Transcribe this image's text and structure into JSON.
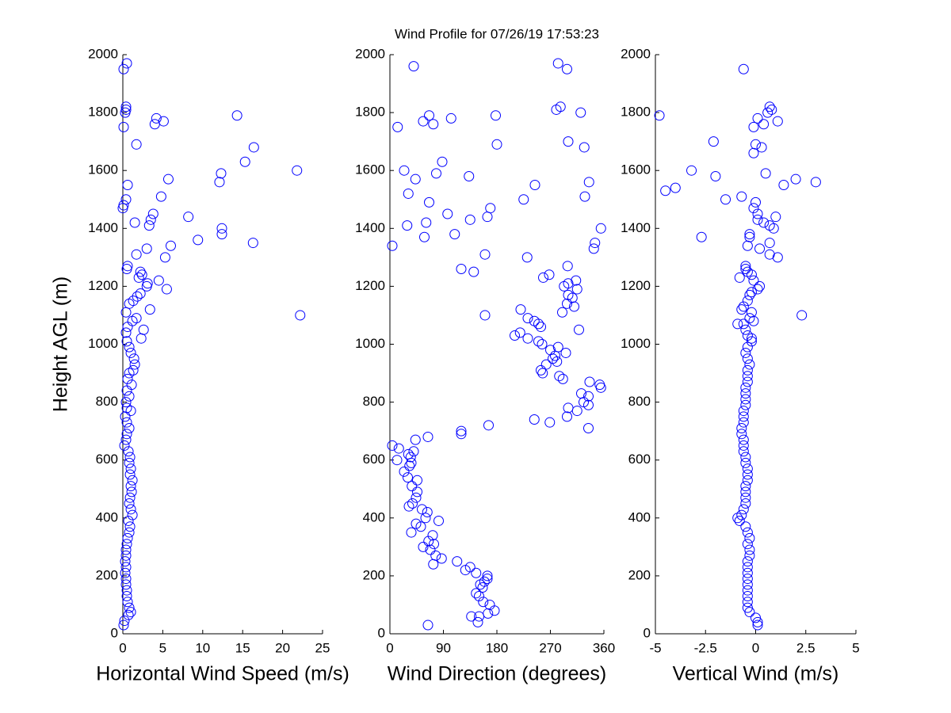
{
  "chart_data": [
    {
      "type": "scatter",
      "xlabel": "Horizontal Wind Speed (m/s)",
      "ylabel": "Height AGL (m)",
      "color": "#0000ff",
      "xlim": [
        0,
        25
      ],
      "xticks": [
        0,
        5,
        10,
        15,
        20,
        25
      ],
      "ylim": [
        0,
        2000
      ],
      "yticks": [
        0,
        200,
        400,
        600,
        800,
        1000,
        1200,
        1400,
        1600,
        1800,
        2000
      ],
      "x": [
        0.5,
        0.1,
        0.4,
        0.4,
        0.3,
        0.1,
        4.2,
        5.1,
        4,
        14.3,
        1.7,
        16.4,
        15.3,
        21.8,
        12.3,
        5.7,
        12.1,
        0.6,
        4.8,
        0.4,
        0.1,
        0,
        3.8,
        8.2,
        3.5,
        1.5,
        3.3,
        12.4,
        12.4,
        9.4,
        16.3,
        6,
        3,
        1.7,
        5.3,
        0.6,
        0.5,
        2.2,
        2.4,
        2,
        4.5,
        3.1,
        3,
        5.5,
        2.2,
        1.8,
        1.3,
        0.8,
        3.4,
        0.4,
        22.2,
        1.7,
        1.2,
        0.6,
        2.6,
        0.4,
        2.3,
        0.5,
        0.8,
        1,
        1.4,
        1.5,
        1.3,
        0.8,
        0.6,
        1.1,
        0.5,
        0.8,
        0.4,
        0.5,
        1,
        0.3,
        0.5,
        0.8,
        0.5,
        0.4,
        0.2,
        0.7,
        0.9,
        0.8,
        1,
        0.9,
        1.2,
        1,
        1.1,
        0.9,
        0.8,
        1,
        1.2,
        0.7,
        0.9,
        0.8,
        0.6,
        0.5,
        0.4,
        0.4,
        0.3,
        0.4,
        0.3,
        0.4,
        0.4,
        0.5,
        0.5,
        0.6,
        0.8,
        1,
        0.7,
        0.2,
        0.1
      ],
      "y": [
        1970,
        1950,
        1820,
        1810,
        1800,
        1750,
        1780,
        1770,
        1760,
        1790,
        1690,
        1680,
        1630,
        1600,
        1590,
        1570,
        1560,
        1550,
        1510,
        1500,
        1480,
        1470,
        1450,
        1440,
        1430,
        1420,
        1410,
        1400,
        1380,
        1360,
        1350,
        1340,
        1330,
        1310,
        1300,
        1270,
        1260,
        1250,
        1240,
        1230,
        1220,
        1210,
        1200,
        1190,
        1175,
        1165,
        1150,
        1140,
        1120,
        1110,
        1100,
        1090,
        1080,
        1060,
        1050,
        1040,
        1020,
        1010,
        990,
        970,
        950,
        930,
        910,
        900,
        880,
        860,
        840,
        820,
        800,
        780,
        770,
        750,
        730,
        710,
        690,
        670,
        650,
        630,
        610,
        590,
        570,
        550,
        530,
        510,
        490,
        470,
        450,
        430,
        410,
        390,
        370,
        350,
        330,
        310,
        290,
        270,
        250,
        230,
        210,
        190,
        170,
        150,
        130,
        110,
        90,
        75,
        65,
        45,
        30
      ]
    },
    {
      "type": "scatter",
      "title": "Wind Profile for  07/26/19 17:53:23",
      "xlabel": "Wind Direction (degrees)",
      "color": "#0000ff",
      "xlim": [
        0,
        360
      ],
      "xticks": [
        0,
        90,
        180,
        270,
        360
      ],
      "ylim": [
        0,
        2000
      ],
      "yticks": [
        0,
        200,
        400,
        600,
        800,
        1000,
        1200,
        1400,
        1600,
        1800,
        2000
      ],
      "x": [
        40,
        283,
        298,
        66,
        103,
        280,
        287,
        321,
        178,
        56,
        13,
        73,
        300,
        180,
        327,
        88,
        24,
        78,
        133,
        43,
        335,
        244,
        31,
        225,
        66,
        328,
        169,
        97,
        164,
        135,
        61,
        29,
        355,
        109,
        58,
        345,
        343,
        4,
        160,
        231,
        299,
        120,
        141,
        268,
        258,
        300,
        313,
        293,
        315,
        300,
        307,
        298,
        310,
        220,
        290,
        160,
        232,
        243,
        250,
        254,
        318,
        219,
        210,
        232,
        250,
        256,
        283,
        270,
        296,
        278,
        274,
        281,
        263,
        254,
        257,
        285,
        291,
        336,
        353,
        355,
        322,
        334,
        326,
        334,
        300,
        315,
        298,
        243,
        269,
        334,
        166,
        120,
        120,
        64,
        43,
        4,
        15,
        40,
        31,
        35,
        12,
        36,
        33,
        24,
        30,
        46,
        37,
        46,
        44,
        38,
        32,
        54,
        63,
        60,
        82,
        44,
        52,
        36,
        72,
        65,
        74,
        56,
        68,
        77,
        87,
        73,
        113,
        135,
        127,
        145,
        164,
        164,
        159,
        152,
        156,
        145,
        150,
        157,
        168,
        176,
        165,
        150,
        137,
        148,
        64
      ],
      "y": [
        1960,
        1970,
        1950,
        1790,
        1780,
        1810,
        1820,
        1800,
        1790,
        1770,
        1750,
        1760,
        1700,
        1690,
        1680,
        1630,
        1600,
        1590,
        1580,
        1570,
        1560,
        1550,
        1520,
        1500,
        1490,
        1510,
        1470,
        1450,
        1440,
        1430,
        1420,
        1410,
        1400,
        1380,
        1370,
        1350,
        1330,
        1340,
        1310,
        1300,
        1270,
        1260,
        1250,
        1240,
        1230,
        1210,
        1220,
        1200,
        1190,
        1170,
        1160,
        1140,
        1130,
        1120,
        1110,
        1100,
        1090,
        1080,
        1070,
        1060,
        1050,
        1040,
        1030,
        1020,
        1010,
        1000,
        990,
        980,
        970,
        960,
        950,
        940,
        930,
        910,
        900,
        890,
        880,
        870,
        860,
        850,
        830,
        820,
        800,
        790,
        780,
        770,
        750,
        740,
        730,
        710,
        720,
        700,
        690,
        680,
        670,
        650,
        640,
        630,
        620,
        610,
        600,
        590,
        580,
        560,
        540,
        530,
        510,
        490,
        470,
        450,
        440,
        430,
        420,
        400,
        390,
        380,
        370,
        350,
        340,
        320,
        310,
        300,
        290,
        270,
        260,
        240,
        250,
        230,
        220,
        210,
        200,
        190,
        180,
        170,
        160,
        140,
        130,
        110,
        100,
        80,
        70,
        60,
        60,
        40,
        30
      ]
    },
    {
      "type": "scatter",
      "xlabel": "Vertical Wind (m/s)",
      "color": "#0000ff",
      "xlim": [
        -5,
        5
      ],
      "xticks": [
        -5,
        -2.5,
        0,
        2.5,
        5
      ],
      "ylim": [
        0,
        2000
      ],
      "yticks": [
        0,
        200,
        400,
        600,
        800,
        1000,
        1200,
        1400,
        1600,
        1800,
        2000
      ],
      "x": [
        -0.6,
        -4.8,
        0.8,
        0.7,
        0.6,
        0.1,
        1.1,
        0.4,
        -0.1,
        -2.1,
        0,
        0.3,
        -0.1,
        0.5,
        -3.2,
        -2,
        2,
        3,
        1.4,
        -4,
        -4.5,
        -0.7,
        -1.5,
        0,
        -0.1,
        0.1,
        0.1,
        1,
        0.4,
        0.7,
        0.9,
        -0.3,
        -0.3,
        -2.7,
        0.7,
        0.2,
        -0.4,
        0.7,
        1.1,
        -0.5,
        -0.5,
        -0.4,
        -0.2,
        -0.8,
        -0.1,
        0.2,
        0.1,
        -0.2,
        -0.3,
        -0.4,
        -0.6,
        -0.7,
        -0.2,
        2.3,
        -0.3,
        -0.1,
        -0.6,
        -0.9,
        -0.5,
        -0.4,
        -0.2,
        -0.2,
        -0.4,
        -0.5,
        -0.4,
        -0.3,
        -0.4,
        -0.4,
        -0.4,
        -0.5,
        -0.5,
        -0.5,
        -0.5,
        -0.6,
        -0.6,
        -0.6,
        -0.7,
        -0.7,
        -0.6,
        -0.6,
        -0.6,
        -0.5,
        -0.5,
        -0.4,
        -0.4,
        -0.4,
        -0.5,
        -0.5,
        -0.5,
        -0.5,
        -0.6,
        -0.7,
        -0.9,
        -0.8,
        -0.5,
        -0.4,
        -0.3,
        -0.4,
        -0.3,
        -0.3,
        -0.4,
        -0.4,
        -0.4,
        -0.4,
        -0.4,
        -0.4,
        -0.4,
        -0.4,
        -0.4,
        -0.3,
        0,
        0.1,
        0.1
      ],
      "y": [
        1950,
        1790,
        1810,
        1820,
        1800,
        1780,
        1770,
        1760,
        1750,
        1700,
        1690,
        1680,
        1660,
        1590,
        1600,
        1580,
        1570,
        1560,
        1550,
        1540,
        1530,
        1510,
        1500,
        1490,
        1470,
        1450,
        1430,
        1440,
        1420,
        1410,
        1400,
        1380,
        1370,
        1370,
        1350,
        1330,
        1340,
        1310,
        1300,
        1270,
        1260,
        1250,
        1240,
        1230,
        1220,
        1200,
        1190,
        1180,
        1170,
        1150,
        1130,
        1120,
        1110,
        1100,
        1090,
        1080,
        1070,
        1070,
        1050,
        1030,
        1020,
        1010,
        990,
        970,
        950,
        930,
        910,
        890,
        870,
        850,
        830,
        810,
        790,
        770,
        750,
        730,
        710,
        690,
        670,
        650,
        630,
        610,
        590,
        570,
        550,
        530,
        510,
        490,
        470,
        450,
        430,
        410,
        400,
        390,
        370,
        350,
        330,
        310,
        290,
        270,
        250,
        230,
        210,
        190,
        170,
        150,
        130,
        110,
        90,
        75,
        55,
        40,
        30
      ]
    }
  ]
}
